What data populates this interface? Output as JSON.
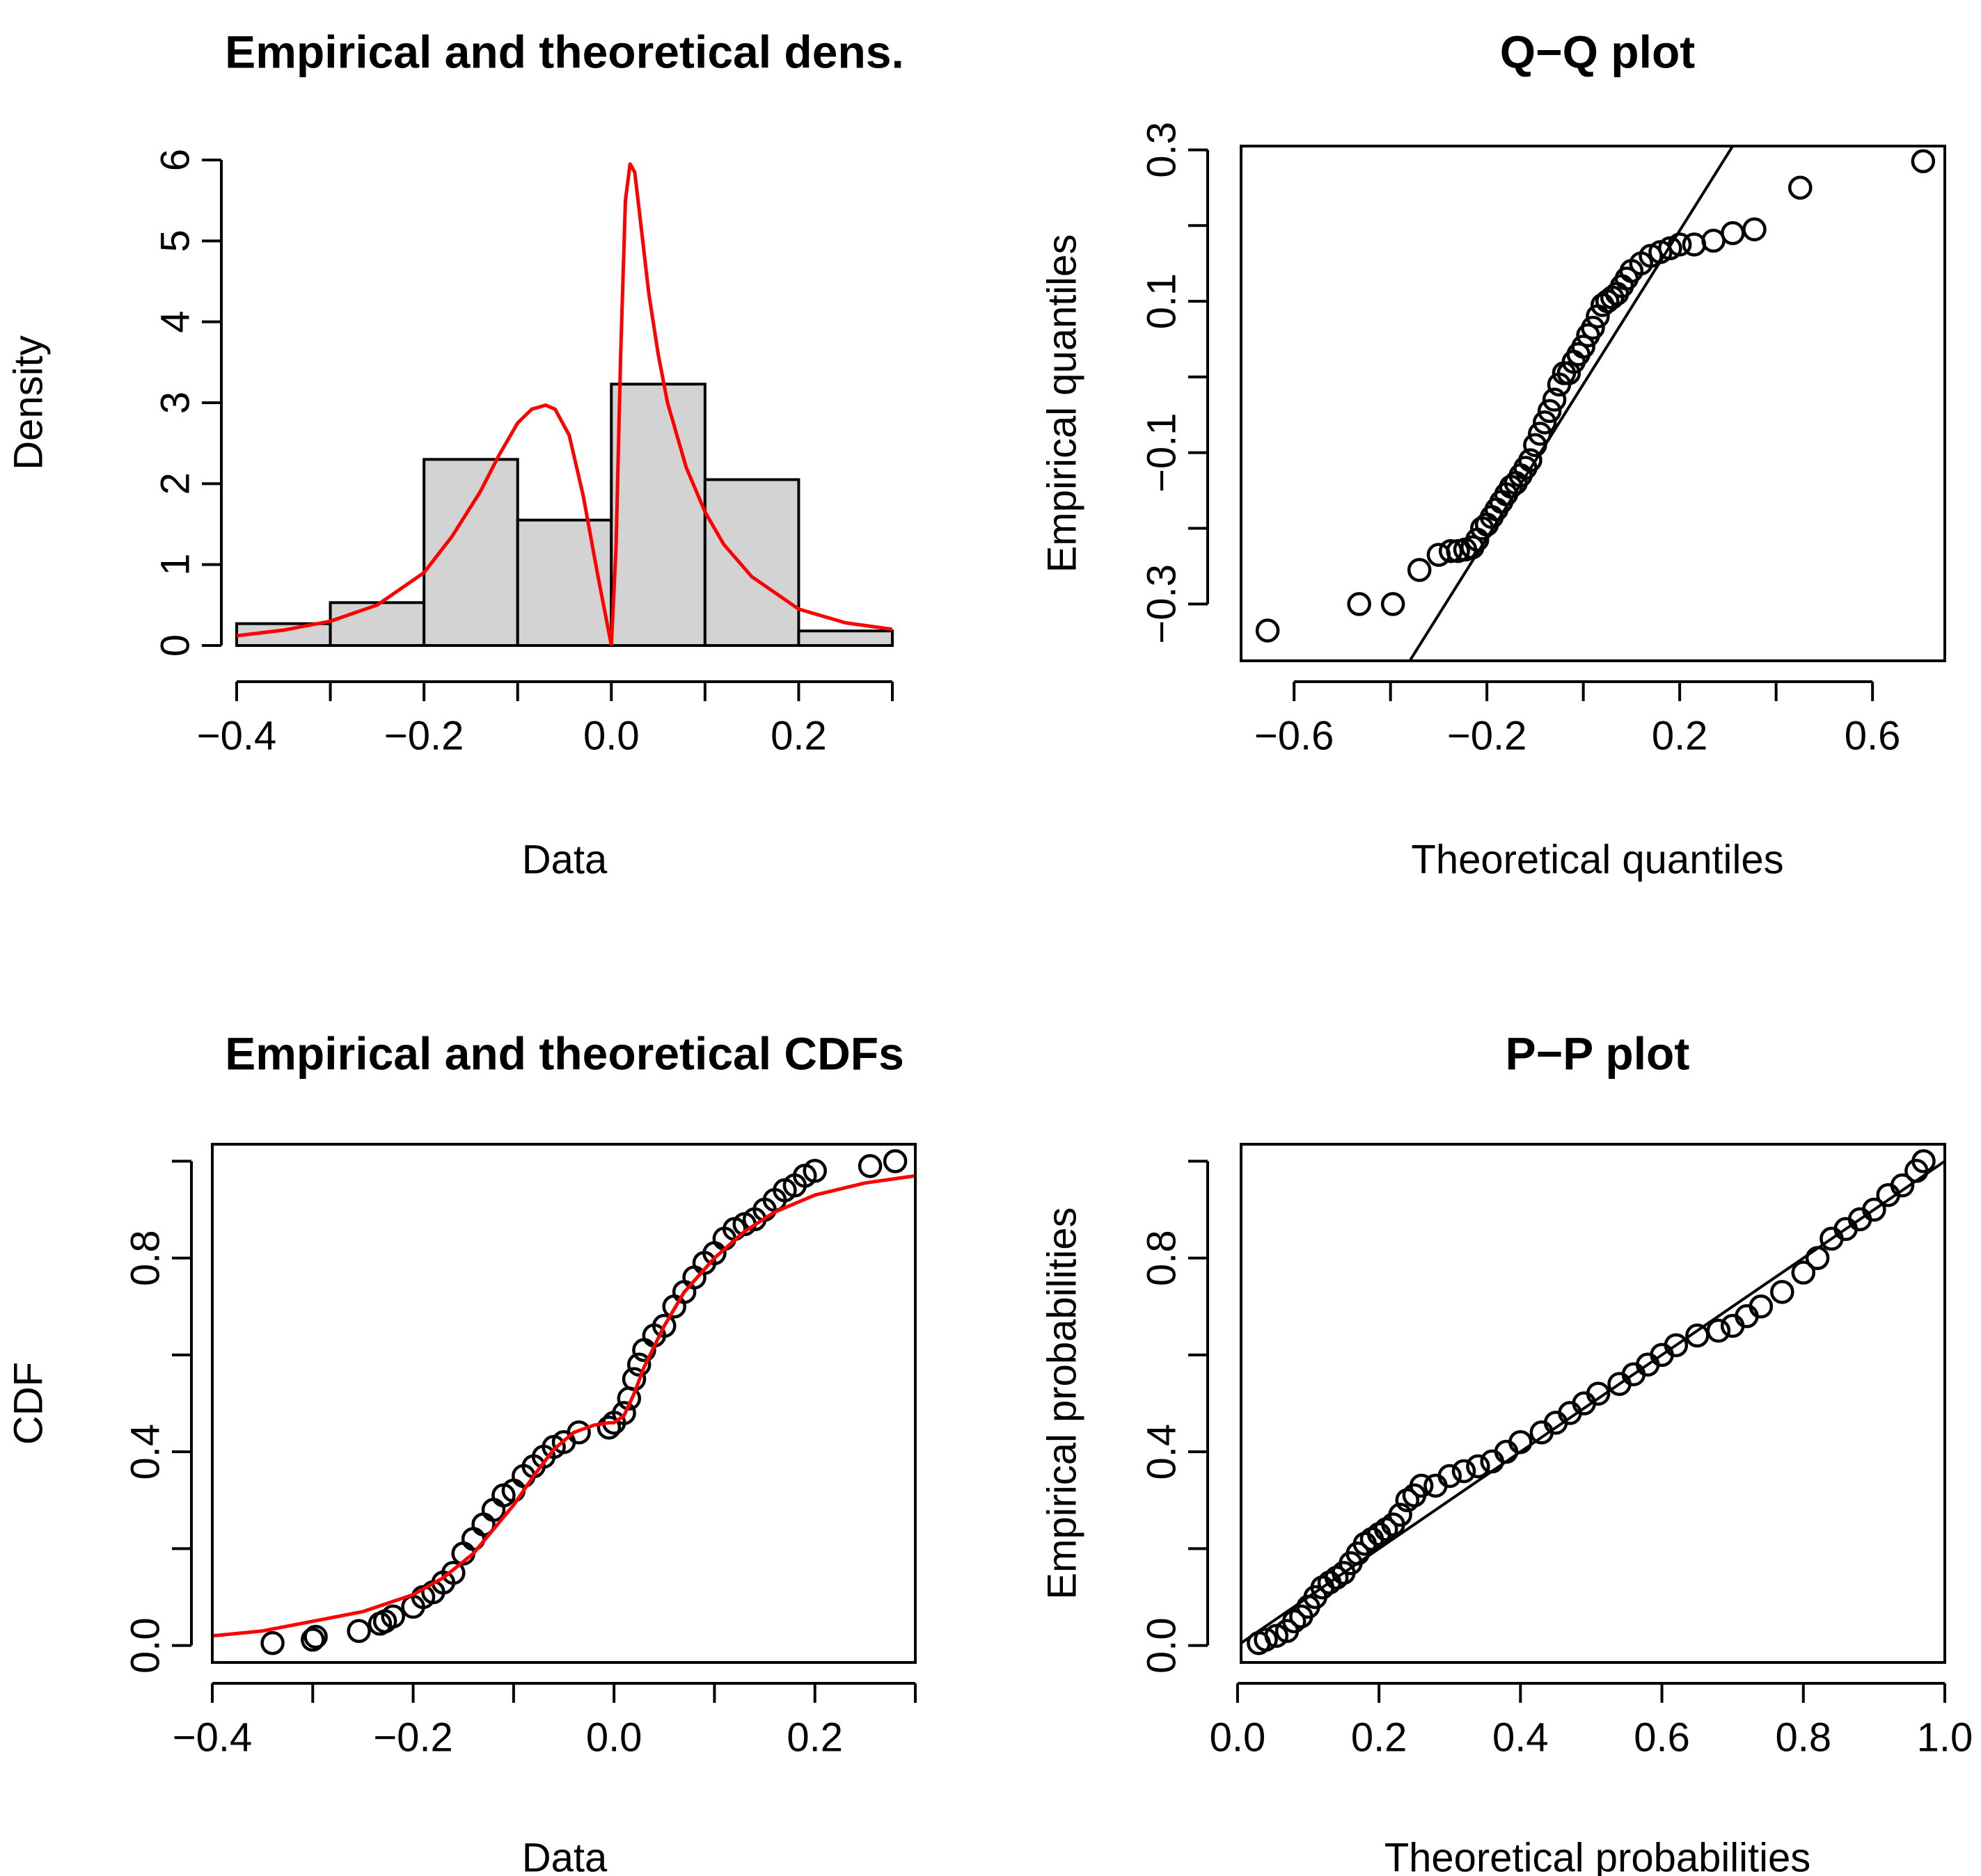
{
  "chart_data": [
    {
      "id": "density",
      "type": "histogram",
      "title": "Empirical and theoretical dens.",
      "xlabel": "Data",
      "ylabel": "Density",
      "xlim": [
        -0.4,
        0.3
      ],
      "ylim": [
        0,
        6
      ],
      "xticks": [
        -0.4,
        -0.3,
        -0.2,
        -0.1,
        0.0,
        0.1,
        0.2,
        0.3
      ],
      "xtick_labels": [
        "−0.4",
        "",
        "−0.2",
        "",
        "0.0",
        "",
        "0.2",
        ""
      ],
      "yticks": [
        0,
        1,
        2,
        3,
        4,
        5,
        6
      ],
      "ytick_labels": [
        "0",
        "1",
        "2",
        "3",
        "4",
        "5",
        "6"
      ],
      "bins": [
        {
          "start": -0.4,
          "end": -0.3,
          "density": 0.27
        },
        {
          "start": -0.3,
          "end": -0.2,
          "density": 0.53
        },
        {
          "start": -0.2,
          "end": -0.1,
          "density": 2.3
        },
        {
          "start": -0.1,
          "end": 0.0,
          "density": 1.55
        },
        {
          "start": 0.0,
          "end": 0.1,
          "density": 3.23
        },
        {
          "start": 0.1,
          "end": 0.2,
          "density": 2.05
        },
        {
          "start": 0.2,
          "end": 0.3,
          "density": 0.18
        }
      ],
      "fitted_curve": {
        "color": "#ff0000",
        "x": [
          -0.4,
          -0.35,
          -0.3,
          -0.25,
          -0.2,
          -0.17,
          -0.14,
          -0.12,
          -0.1,
          -0.085,
          -0.07,
          -0.06,
          -0.045,
          -0.03,
          -0.015,
          -0.005,
          0.0,
          0.005,
          0.01,
          0.015,
          0.02,
          0.025,
          0.03,
          0.04,
          0.05,
          0.06,
          0.08,
          0.1,
          0.12,
          0.15,
          0.2,
          0.25,
          0.3
        ],
        "y": [
          0.12,
          0.19,
          0.3,
          0.5,
          0.9,
          1.35,
          1.9,
          2.35,
          2.75,
          2.92,
          2.97,
          2.92,
          2.6,
          1.85,
          0.9,
          0.3,
          0.0,
          1.2,
          3.6,
          5.5,
          5.95,
          5.85,
          5.35,
          4.35,
          3.6,
          3.0,
          2.2,
          1.65,
          1.25,
          0.85,
          0.45,
          0.28,
          0.2
        ]
      }
    },
    {
      "id": "qq",
      "type": "scatter",
      "title": "Q−Q plot",
      "xlabel": "Theoretical quantiles",
      "ylabel": "Empirical quantiles",
      "xlim": [
        -0.71,
        0.75
      ],
      "ylim": [
        -0.375,
        0.305
      ],
      "xticks": [
        -0.6,
        -0.4,
        -0.2,
        0.0,
        0.2,
        0.4,
        0.6
      ],
      "xtick_labels": [
        "−0.6",
        "",
        "−0.2",
        "",
        "0.2",
        "",
        "0.6"
      ],
      "yticks": [
        -0.3,
        -0.2,
        -0.1,
        0.0,
        0.1,
        0.2,
        0.3
      ],
      "ytick_labels": [
        "−0.3",
        "",
        "−0.1",
        "",
        "0.1",
        "",
        "0.3"
      ],
      "reference_line": {
        "x": [
          -0.36,
          0.31
        ],
        "y": [
          -0.375,
          0.305
        ]
      },
      "points": {
        "x": [
          -0.655,
          -0.465,
          -0.395,
          -0.34,
          -0.3,
          -0.275,
          -0.26,
          -0.245,
          -0.23,
          -0.22,
          -0.21,
          -0.2,
          -0.19,
          -0.18,
          -0.17,
          -0.16,
          -0.15,
          -0.14,
          -0.13,
          -0.12,
          -0.11,
          -0.1,
          -0.09,
          -0.08,
          -0.07,
          -0.06,
          -0.05,
          -0.04,
          -0.03,
          -0.02,
          -0.01,
          0.0,
          0.01,
          0.02,
          0.03,
          0.04,
          0.05,
          0.06,
          0.07,
          0.08,
          0.09,
          0.1,
          0.12,
          0.14,
          0.16,
          0.18,
          0.2,
          0.23,
          0.27,
          0.31,
          0.355,
          0.45,
          0.705
        ],
        "y": [
          -0.335,
          -0.3,
          -0.3,
          -0.255,
          -0.235,
          -0.23,
          -0.23,
          -0.228,
          -0.225,
          -0.215,
          -0.2,
          -0.195,
          -0.185,
          -0.175,
          -0.165,
          -0.155,
          -0.145,
          -0.14,
          -0.13,
          -0.12,
          -0.11,
          -0.09,
          -0.075,
          -0.06,
          -0.045,
          -0.03,
          -0.01,
          0.005,
          0.005,
          0.02,
          0.03,
          0.04,
          0.055,
          0.065,
          0.08,
          0.095,
          0.1,
          0.105,
          0.11,
          0.12,
          0.13,
          0.14,
          0.15,
          0.16,
          0.165,
          0.17,
          0.175,
          0.175,
          0.18,
          0.19,
          0.195,
          0.25,
          0.285
        ]
      }
    },
    {
      "id": "cdf",
      "type": "scatter",
      "title": "Empirical and theoretical CDFs",
      "xlabel": "Data",
      "ylabel": "CDF",
      "xlim": [
        -0.4,
        0.3
      ],
      "ylim": [
        -0.035,
        1.035
      ],
      "xticks": [
        -0.4,
        -0.3,
        -0.2,
        -0.1,
        0.0,
        0.1,
        0.2,
        0.3
      ],
      "xtick_labels": [
        "−0.4",
        "",
        "−0.2",
        "",
        "0.0",
        "",
        "0.2",
        ""
      ],
      "yticks": [
        0.0,
        0.2,
        0.4,
        0.6,
        0.8,
        1.0
      ],
      "ytick_labels": [
        "0.0",
        "",
        "0.4",
        "",
        "0.8",
        ""
      ],
      "fitted_curve": {
        "color": "#ff0000",
        "x": [
          -0.4,
          -0.35,
          -0.3,
          -0.25,
          -0.2,
          -0.17,
          -0.14,
          -0.12,
          -0.1,
          -0.08,
          -0.06,
          -0.04,
          -0.02,
          -0.005,
          0.0,
          0.01,
          0.02,
          0.03,
          0.05,
          0.07,
          0.1,
          0.13,
          0.16,
          0.2,
          0.25,
          0.3
        ],
        "y": [
          0.02,
          0.03,
          0.05,
          0.07,
          0.105,
          0.14,
          0.19,
          0.24,
          0.29,
          0.35,
          0.405,
          0.44,
          0.455,
          0.46,
          0.46,
          0.475,
          0.52,
          0.575,
          0.66,
          0.73,
          0.8,
          0.855,
          0.895,
          0.93,
          0.955,
          0.97
        ]
      },
      "points": {
        "x": [
          -0.34,
          -0.3,
          -0.297,
          -0.254,
          -0.233,
          -0.228,
          -0.22,
          -0.2,
          -0.19,
          -0.18,
          -0.17,
          -0.16,
          -0.15,
          -0.14,
          -0.13,
          -0.12,
          -0.11,
          -0.1,
          -0.09,
          -0.08,
          -0.07,
          -0.06,
          -0.05,
          -0.035,
          -0.005,
          0.0,
          0.01,
          0.015,
          0.02,
          0.025,
          0.03,
          0.04,
          0.05,
          0.06,
          0.07,
          0.08,
          0.09,
          0.1,
          0.11,
          0.12,
          0.13,
          0.14,
          0.15,
          0.16,
          0.17,
          0.18,
          0.19,
          0.2,
          0.255,
          0.28
        ],
        "y": [
          0.005,
          0.012,
          0.018,
          0.03,
          0.045,
          0.05,
          0.06,
          0.08,
          0.1,
          0.11,
          0.13,
          0.15,
          0.19,
          0.22,
          0.25,
          0.28,
          0.31,
          0.32,
          0.35,
          0.37,
          0.39,
          0.41,
          0.42,
          0.44,
          0.45,
          0.46,
          0.48,
          0.51,
          0.55,
          0.58,
          0.61,
          0.64,
          0.66,
          0.7,
          0.73,
          0.76,
          0.79,
          0.81,
          0.84,
          0.86,
          0.87,
          0.88,
          0.9,
          0.92,
          0.94,
          0.95,
          0.97,
          0.98,
          0.99,
          1.0
        ]
      }
    },
    {
      "id": "pp",
      "type": "scatter",
      "title": "P−P plot",
      "xlabel": "Theoretical probabilities",
      "ylabel": "Empirical probabilities",
      "xlim": [
        0.005,
        1.0
      ],
      "ylim": [
        -0.035,
        1.035
      ],
      "xticks": [
        0.0,
        0.2,
        0.4,
        0.6,
        0.8,
        1.0
      ],
      "xtick_labels": [
        "0.0",
        "0.2",
        "0.4",
        "0.6",
        "0.8",
        "1.0"
      ],
      "yticks": [
        0.0,
        0.2,
        0.4,
        0.6,
        0.8,
        1.0
      ],
      "ytick_labels": [
        "0.0",
        "",
        "0.4",
        "",
        "0.8",
        ""
      ],
      "reference_line": {
        "x": [
          0.0,
          1.0
        ],
        "y": [
          0.0,
          1.0
        ]
      },
      "points": {
        "x": [
          0.03,
          0.04,
          0.055,
          0.07,
          0.08,
          0.09,
          0.1,
          0.11,
          0.12,
          0.13,
          0.14,
          0.15,
          0.16,
          0.17,
          0.18,
          0.19,
          0.2,
          0.21,
          0.22,
          0.23,
          0.24,
          0.25,
          0.26,
          0.28,
          0.3,
          0.32,
          0.34,
          0.36,
          0.38,
          0.4,
          0.43,
          0.45,
          0.47,
          0.49,
          0.51,
          0.54,
          0.56,
          0.58,
          0.6,
          0.62,
          0.65,
          0.68,
          0.7,
          0.72,
          0.74,
          0.77,
          0.8,
          0.82,
          0.84,
          0.86,
          0.88,
          0.9,
          0.92,
          0.94,
          0.96,
          0.97
        ],
        "y": [
          0.005,
          0.012,
          0.02,
          0.03,
          0.05,
          0.06,
          0.08,
          0.1,
          0.12,
          0.13,
          0.14,
          0.15,
          0.17,
          0.19,
          0.21,
          0.22,
          0.23,
          0.24,
          0.25,
          0.27,
          0.3,
          0.31,
          0.33,
          0.33,
          0.35,
          0.36,
          0.37,
          0.38,
          0.4,
          0.42,
          0.44,
          0.46,
          0.48,
          0.5,
          0.52,
          0.54,
          0.56,
          0.58,
          0.6,
          0.62,
          0.64,
          0.65,
          0.66,
          0.68,
          0.7,
          0.73,
          0.77,
          0.8,
          0.84,
          0.86,
          0.88,
          0.9,
          0.93,
          0.95,
          0.98,
          1.0
        ]
      }
    }
  ]
}
